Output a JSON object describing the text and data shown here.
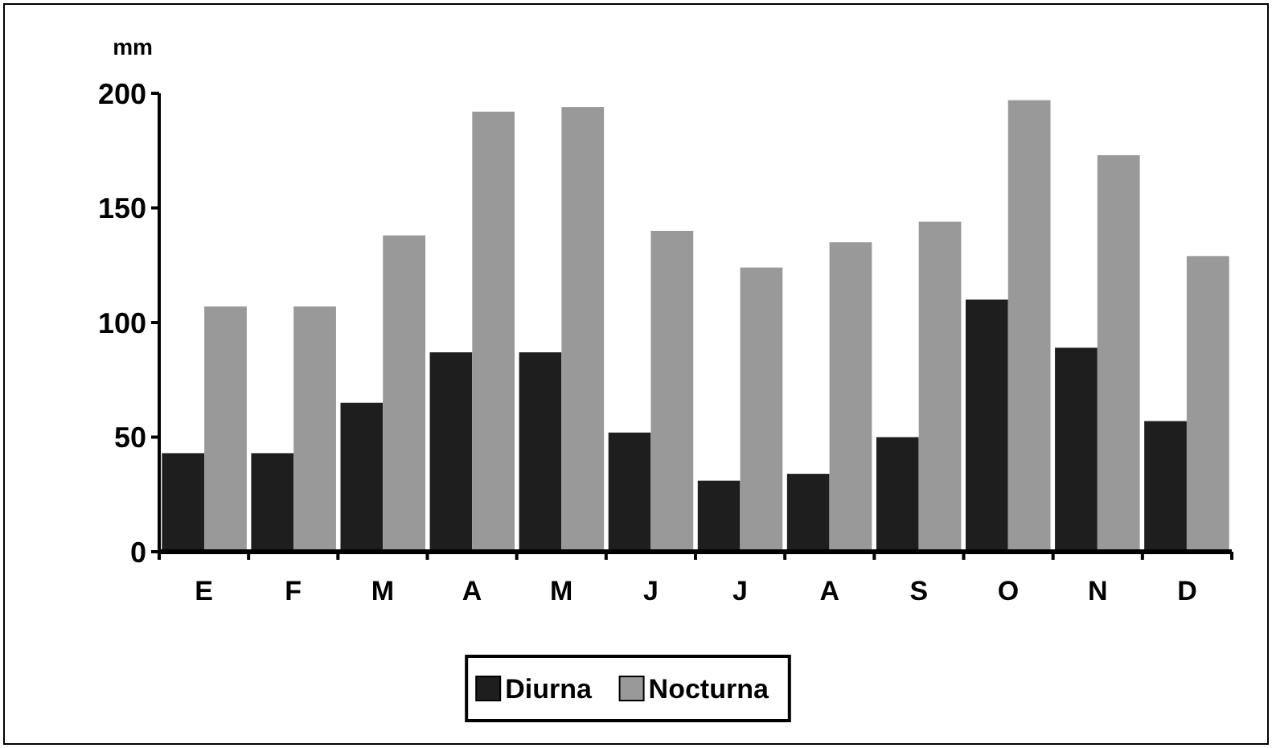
{
  "chart_data": {
    "type": "bar",
    "ylabel": "mm",
    "categories": [
      "E",
      "F",
      "M",
      "A",
      "M",
      "J",
      "J",
      "A",
      "S",
      "O",
      "N",
      "D"
    ],
    "series": [
      {
        "name": "Diurna",
        "color": "#1e1e1e",
        "values": [
          43,
          43,
          65,
          87,
          87,
          52,
          31,
          34,
          50,
          110,
          89,
          57
        ]
      },
      {
        "name": "Nocturna",
        "color": "#999999",
        "values": [
          107,
          107,
          138,
          192,
          194,
          140,
          124,
          135,
          144,
          197,
          173,
          129
        ]
      }
    ],
    "ylim": [
      0,
      200
    ],
    "yticks": [
      0,
      50,
      100,
      150,
      200
    ],
    "legend": "bottom"
  }
}
